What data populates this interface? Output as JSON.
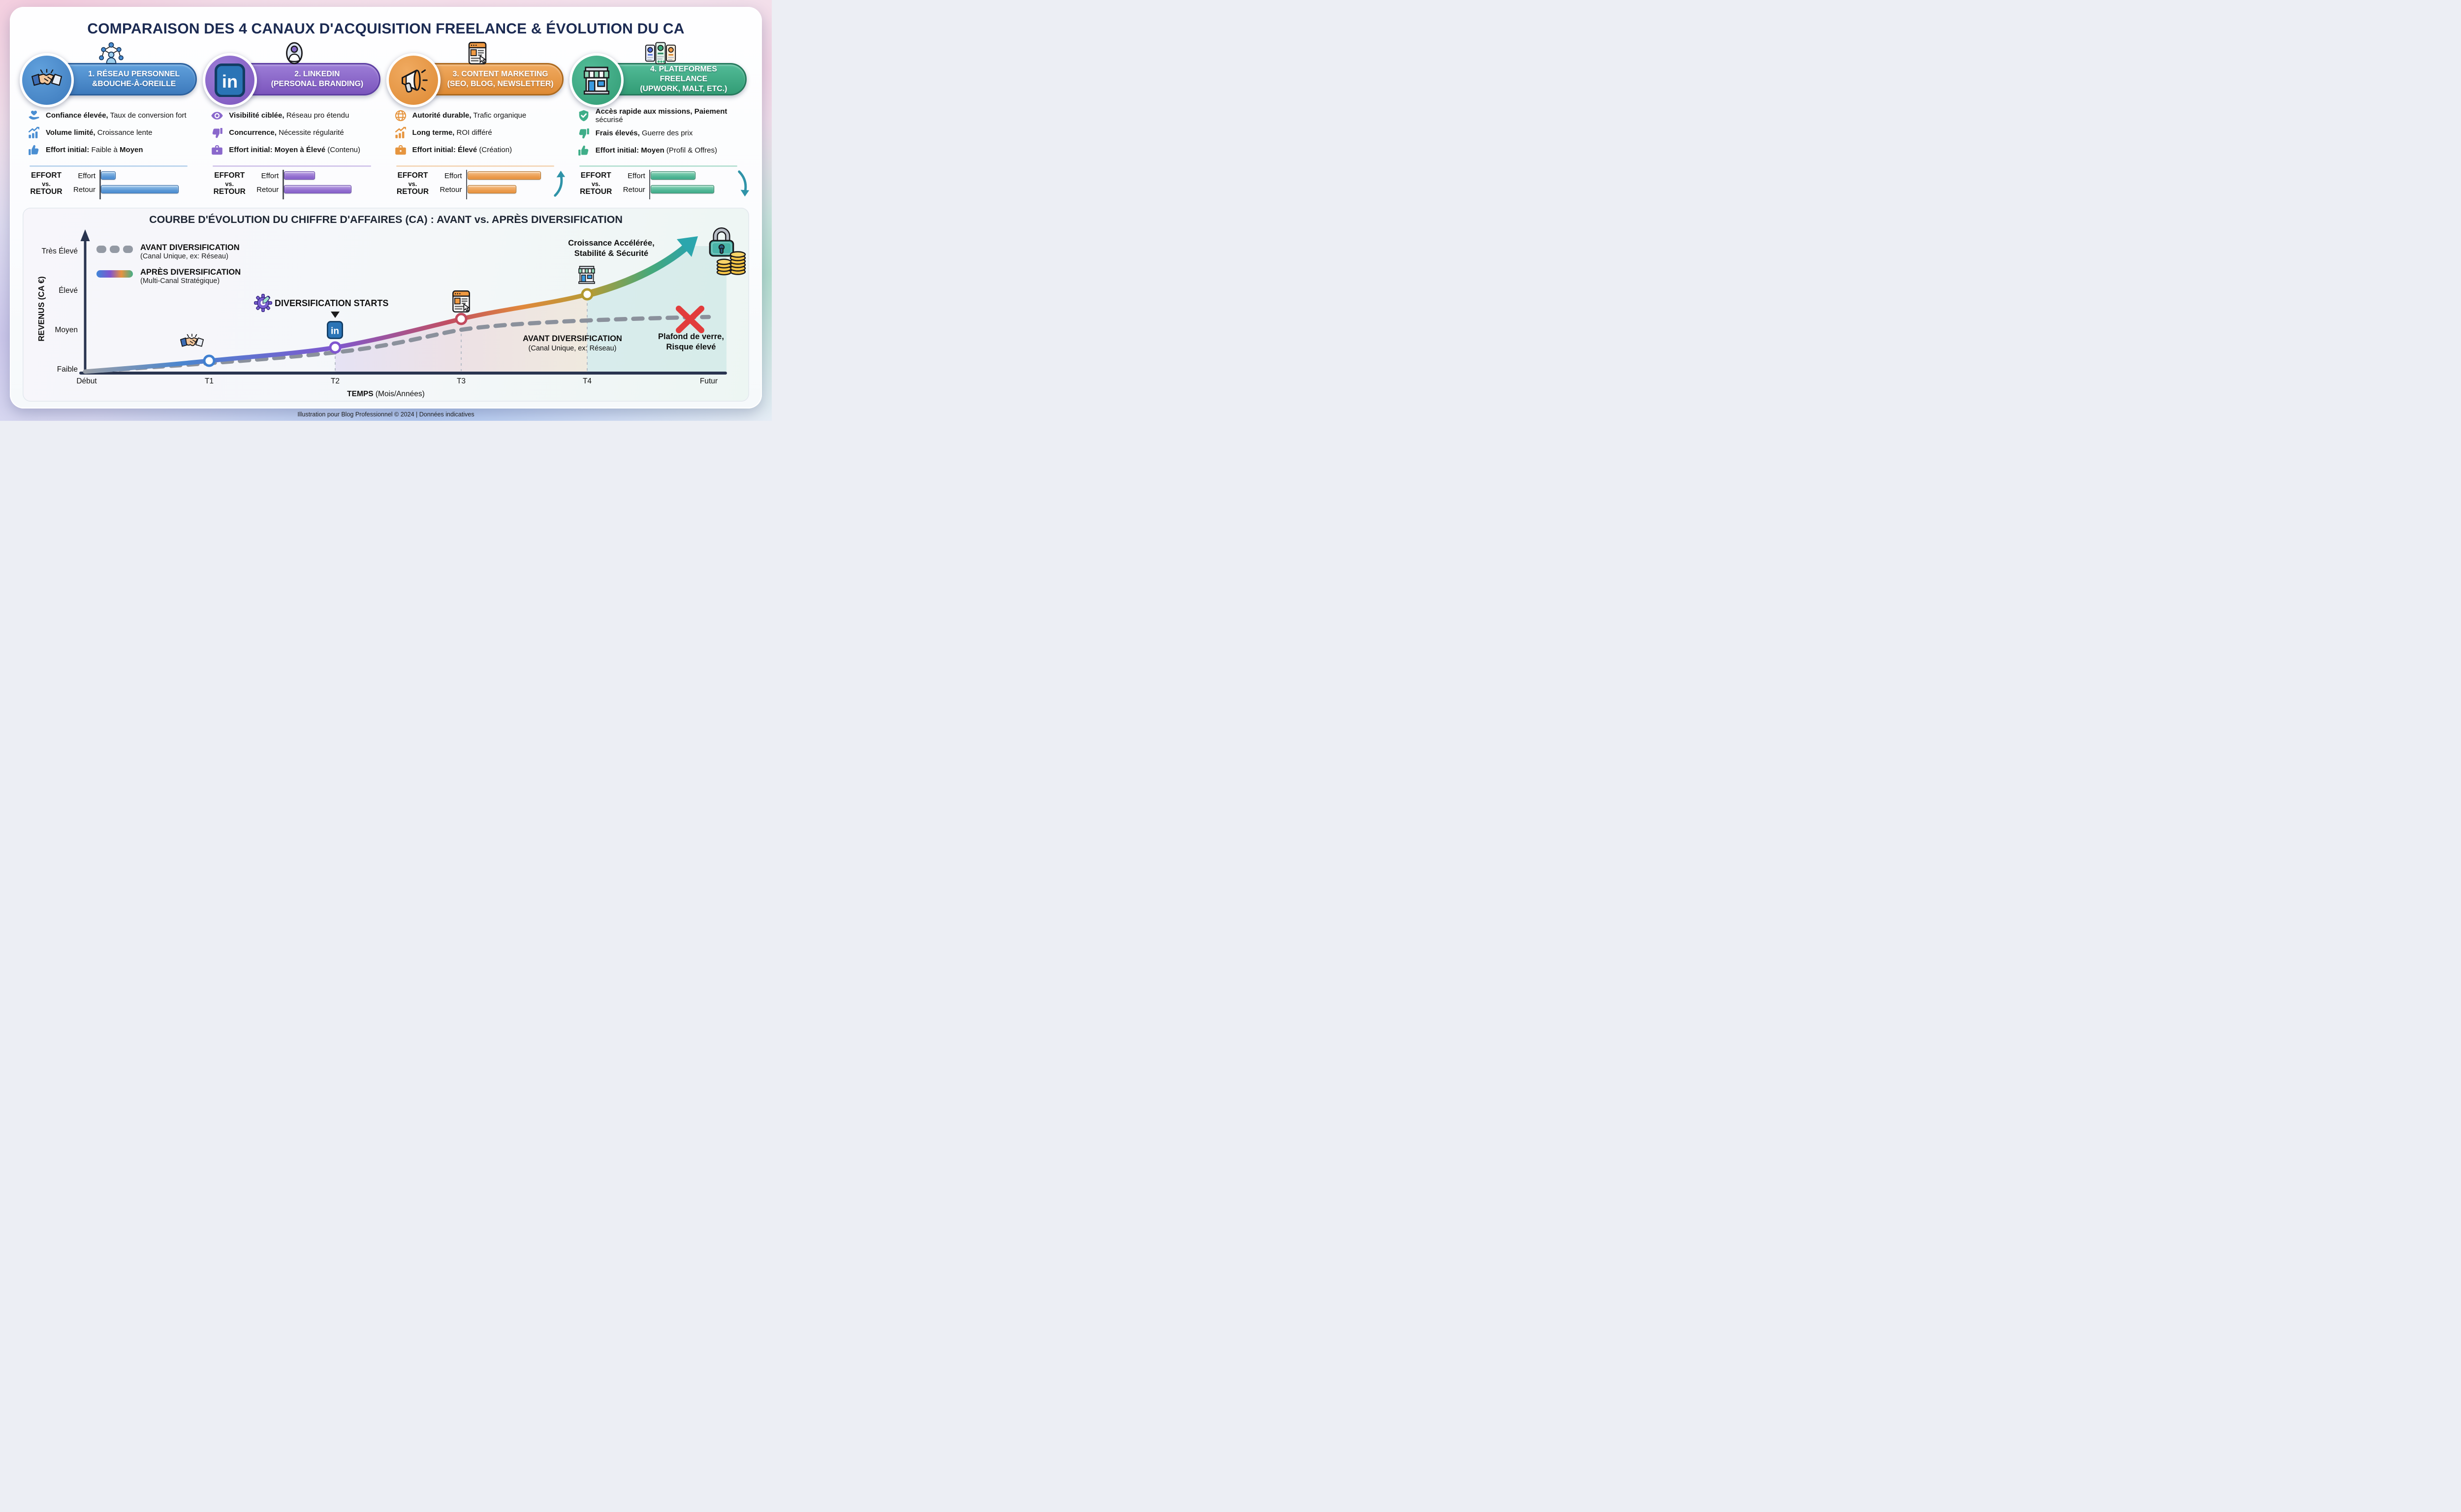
{
  "page": {
    "title": "COMPARAISON DES 4 CANAUX D'ACQUISITION FREELANCE & ÉVOLUTION DU CA",
    "footer": "Illustration pour Blog Professionnel © 2024 | Données indicatives"
  },
  "effort_block": {
    "header1": "EFFORT",
    "header2": "vs.",
    "header3": "RETOUR",
    "effort_label": "Effort",
    "retour_label": "Retour"
  },
  "cards": [
    {
      "title_line1": "1. RÉSEAU PERSONNEL",
      "title_line2": "&BOUCHE-À-OREILLE",
      "top_icon": "people-network-icon",
      "badge_icon": "handshake-icon",
      "colors": {
        "accent": "#4a8ed2",
        "dark": "#2c619e",
        "pill_from": "#60a0dc",
        "pill_to": "#3d7abc",
        "bar_light": "#9cc6ea",
        "bar_base": "#5493d4"
      },
      "bullets": [
        {
          "icon": "hand-heart-icon",
          "parts": [
            {
              "b": 1,
              "t": "Confiance élevée,"
            },
            {
              "b": 0,
              "t": " Taux de conversion fort"
            }
          ]
        },
        {
          "icon": "growth-chart-icon",
          "parts": [
            {
              "b": 1,
              "t": "Volume limité,"
            },
            {
              "b": 0,
              "t": " Croissance lente"
            }
          ]
        },
        {
          "icon": "thumbs-up-icon",
          "parts": [
            {
              "b": 1,
              "t": "Effort initial:"
            },
            {
              "b": 0,
              "t": " Faible à "
            },
            {
              "b": 1,
              "t": "Moyen"
            }
          ]
        }
      ],
      "bars": {
        "effort_pct": 18,
        "retour_pct": 95
      },
      "trend": ""
    },
    {
      "title_line1": "2. LINKEDIN",
      "title_line2": "(PERSONAL BRANDING)",
      "top_icon": "person-avatar-icon",
      "badge_icon": "linkedin-badge-icon",
      "colors": {
        "accent": "#8a68cc",
        "dark": "#5e3fa3",
        "pill_from": "#9d7ed7",
        "pill_to": "#7b55bd",
        "bar_light": "#bca3e3",
        "bar_base": "#8d68cd"
      },
      "bullets": [
        {
          "icon": "eye-icon",
          "parts": [
            {
              "b": 1,
              "t": "Visibilité ciblée,"
            },
            {
              "b": 0,
              "t": " Réseau pro étendu"
            }
          ]
        },
        {
          "icon": "thumbs-down-icon",
          "parts": [
            {
              "b": 1,
              "t": "Concurrence,"
            },
            {
              "b": 0,
              "t": " Nécessite régularité"
            }
          ]
        },
        {
          "icon": "briefcase-icon",
          "parts": [
            {
              "b": 1,
              "t": "Effort initial: Moyen à Élevé"
            },
            {
              "b": 0,
              "t": " (Contenu)"
            }
          ]
        }
      ],
      "bars": {
        "effort_pct": 38,
        "retour_pct": 82
      },
      "trend": ""
    },
    {
      "title_line1": "3. CONTENT MARKETING",
      "title_line2": "(SEO, BLOG, NEWSLETTER)",
      "top_icon": "browser-window-icon",
      "badge_icon": "megaphone-icon",
      "colors": {
        "accent": "#e6953f",
        "dark": "#ad6a1f",
        "pill_from": "#f0aa60",
        "pill_to": "#de8a34",
        "bar_light": "#f5c089",
        "bar_base": "#ea9848"
      },
      "bullets": [
        {
          "icon": "globe-icon",
          "parts": [
            {
              "b": 1,
              "t": "Autorité durable,"
            },
            {
              "b": 0,
              "t": " Trafic organique"
            }
          ]
        },
        {
          "icon": "growth-chart-icon",
          "parts": [
            {
              "b": 1,
              "t": "Long terme,"
            },
            {
              "b": 0,
              "t": " ROI différé"
            }
          ]
        },
        {
          "icon": "briefcase-icon",
          "parts": [
            {
              "b": 1,
              "t": "Effort initial: Élevé"
            },
            {
              "b": 0,
              "t": " (Création)"
            }
          ]
        }
      ],
      "bars": {
        "effort_pct": 90,
        "retour_pct": 60
      },
      "trend": "up"
    },
    {
      "title_line1": "4. PLATEFORMES FREELANCE",
      "title_line2": "(UPWORK, MALT, ETC.)",
      "top_icon": "freelancer-cards-icon",
      "badge_icon": "storefront-icon",
      "colors": {
        "accent": "#3fae89",
        "dark": "#267a5d",
        "pill_from": "#52bb97",
        "pill_to": "#329c75",
        "bar_light": "#8ed6ba",
        "bar_base": "#4ab291"
      },
      "bullets": [
        {
          "icon": "shield-check-icon",
          "parts": [
            {
              "b": 1,
              "t": "Accès rapide aux missions,"
            },
            {
              "b": 0,
              "t": " "
            },
            {
              "b": 1,
              "t": "Paiement"
            },
            {
              "b": 0,
              "t": " sécurisé"
            }
          ]
        },
        {
          "icon": "thumbs-down-icon",
          "parts": [
            {
              "b": 1,
              "t": "Frais élevés,"
            },
            {
              "b": 0,
              "t": " Guerre des prix"
            }
          ]
        },
        {
          "icon": "thumbs-up-icon",
          "parts": [
            {
              "b": 1,
              "t": "Effort initial: Moyen"
            },
            {
              "b": 0,
              "t": " (Profil & Offres)"
            }
          ]
        }
      ],
      "bars": {
        "effort_pct": 55,
        "retour_pct": 78
      },
      "trend": "down"
    }
  ],
  "chart": {
    "title": "COURBE D'ÉVOLUTION DU CHIFFRE D'AFFAIRES (CA) : AVANT vs. APRÈS DIVERSIFICATION",
    "legend": {
      "avant_title": "AVANT DIVERSIFICATION",
      "avant_sub": "(Canal Unique, ex: Réseau)",
      "apres_title": "APRÈS DIVERSIFICATION",
      "apres_sub": "(Multi-Canal Stratégique)"
    },
    "y_axis": {
      "label": "REVENUS (CA €)",
      "ticks": [
        "Très Élevé",
        "Élevé",
        "Moyen",
        "Faible"
      ]
    },
    "x_axis": {
      "label_bold": "TEMPS",
      "label_rest": " (Mois/Années)",
      "ticks": [
        "Début",
        "T1",
        "T2",
        "T3",
        "T4",
        "Futur"
      ]
    },
    "annotations": {
      "diversification": "DIVERSIFICATION STARTS",
      "croissance_1": "Croissance Accélérée,",
      "croissance_2": "Stabilité & Sécurité",
      "avant_1": "AVANT DIVERSIFICATION",
      "avant_2": "(Canal Unique, ex: Réseau)",
      "plafond_1": "Plafond de verre,",
      "plafond_2": "Risque élevé"
    },
    "icons": {
      "t1": "handshake-icon",
      "t2": "linkedin-badge-icon",
      "t3": "browser-window-icon",
      "t4": "storefront-icon",
      "start": "gear-icon",
      "top": "lock-icon",
      "money": "coins-icon"
    }
  },
  "chart_data": [
    {
      "type": "line",
      "title": "COURBE D'ÉVOLUTION DU CHIFFRE D'AFFAIRES (CA) : AVANT vs. APRÈS DIVERSIFICATION",
      "x": [
        "Début",
        "T1",
        "T2",
        "T3",
        "T4",
        "Futur"
      ],
      "xlabel": "TEMPS (Mois/Années)",
      "ylabel": "REVENUS (CA €)",
      "y_ordinal_scale": [
        "Faible",
        "Moyen",
        "Élevé",
        "Très Élevé"
      ],
      "ylim": [
        "Faible",
        "Très Élevé"
      ],
      "grid": false,
      "legend_position": "top-left",
      "series": [
        {
          "name": "AVANT DIVERSIFICATION (Canal Unique, ex: Réseau)",
          "style": "dashed-gray",
          "values_level": [
            1.0,
            1.3,
            1.6,
            2.1,
            2.3,
            2.4
          ],
          "end_marker": "red-x"
        },
        {
          "name": "APRÈS DIVERSIFICATION (Multi-Canal Stratégique)",
          "style": "gradient-multicolor",
          "values_level": [
            1.0,
            1.3,
            1.65,
            2.35,
            2.95,
            3.95
          ],
          "markers_at": [
            "T1",
            "T2",
            "T3",
            "T4"
          ],
          "end_marker": "teal-arrow-up"
        }
      ],
      "annotations": [
        "DIVERSIFICATION STARTS (à T2)",
        "Croissance Accélérée, Stabilité & Sécurité (vers T4)",
        "AVANT DIVERSIFICATION (Canal Unique, ex: Réseau)",
        "Plafond de verre, Risque élevé (Futur)"
      ]
    },
    {
      "type": "bar",
      "title": "EFFORT vs. RETOUR (mini-graphiques par canal)",
      "categories": [
        "Effort",
        "Retour"
      ],
      "series": [
        {
          "name": "1. Réseau Personnel & Bouche-à-Oreille",
          "values_pct": [
            18,
            95
          ],
          "trend": ""
        },
        {
          "name": "2. LinkedIn (Personal Branding)",
          "values_pct": [
            38,
            82
          ],
          "trend": ""
        },
        {
          "name": "3. Content Marketing (SEO, Blog, Newsletter)",
          "values_pct": [
            90,
            60
          ],
          "trend": "up"
        },
        {
          "name": "4. Plateformes Freelance (Upwork, Malt, etc.)",
          "values_pct": [
            55,
            78
          ],
          "trend": "down"
        }
      ]
    }
  ]
}
